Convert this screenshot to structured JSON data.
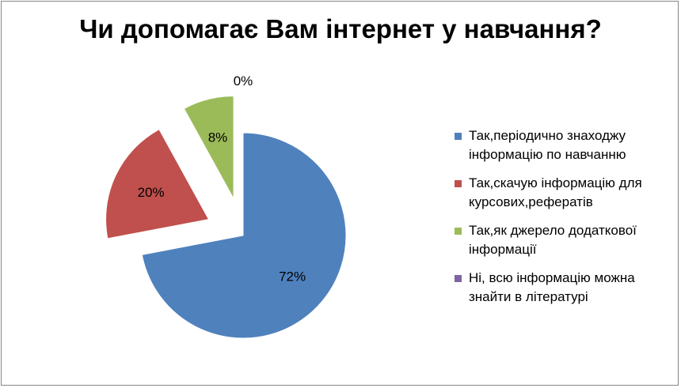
{
  "chart_data": {
    "type": "pie",
    "title": "Чи допомагає Вам інтернет у навчання?",
    "categories": [
      "Так,періодично знаходжу інформацію по навчанню",
      "Так,скачую інформацію для курсових,рефератів",
      "Так,як джерело додаткової інформації",
      "Ні, всю інформацію можна знайти в літературі"
    ],
    "values": [
      72,
      20,
      8,
      0
    ],
    "data_labels": [
      "72%",
      "20%",
      "8%",
      "0%"
    ],
    "colors": [
      "#4f81bd",
      "#c0504d",
      "#9bbb59",
      "#8064a2"
    ],
    "exploded": [
      false,
      true,
      true,
      true
    ],
    "legend_position": "right"
  },
  "legend": {
    "items": [
      {
        "line1": "Так,періодично знаходжу",
        "line2": "інформацію по навчанню"
      },
      {
        "line1": "Так,скачую інформацію для",
        "line2": "курсових,рефератів"
      },
      {
        "line1": "Так,як джерело додаткової",
        "line2": "інформації"
      },
      {
        "line1": "Ні, всю інформацію можна",
        "line2": "знайти в літературі"
      }
    ]
  }
}
